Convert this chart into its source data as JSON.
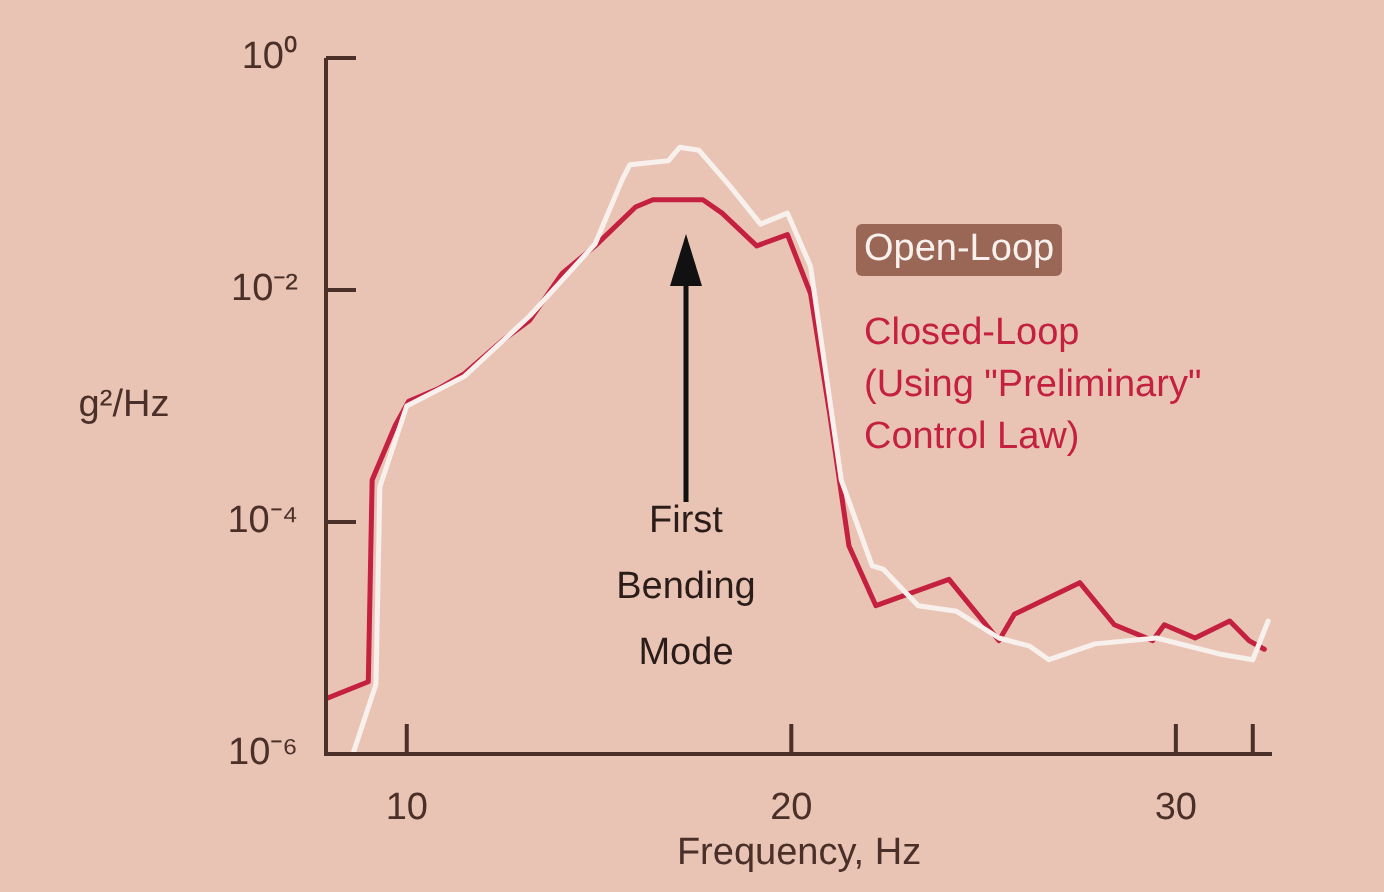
{
  "chart_data": {
    "type": "line",
    "xlabel": "Frequency, Hz",
    "ylabel": "g²/Hz",
    "log": "y",
    "grid": false,
    "legend": "right",
    "marker": "none",
    "line_style": "solid",
    "xlim": [
      7.9,
      32.5
    ],
    "xticks": [
      10,
      20,
      30,
      {
        "value": 32,
        "label": null
      }
    ],
    "ylim": [
      1e-06,
      1
    ],
    "yticks": [
      {
        "value": 1,
        "label": "10⁰"
      },
      {
        "value": 0.01,
        "label": "10⁻²"
      },
      {
        "value": 0.0001,
        "label": "10⁻⁴"
      },
      {
        "value": 1e-06,
        "label": "10⁻⁶"
      }
    ],
    "annotations": [
      "First Bending Mode"
    ],
    "series": [
      {
        "name": "Open-Loop",
        "color": "#f8f0ec",
        "x": [
          8.6,
          9.2,
          9.3,
          10.0,
          11.5,
          13.2,
          14.9,
          15.6,
          15.8,
          16.8,
          17.1,
          17.6,
          18.4,
          19.2,
          19.9,
          20.5,
          21.3,
          22.1,
          22.4,
          23.3,
          24.3,
          25.4,
          26.2,
          26.7,
          27.9,
          29.5,
          31.2,
          32.0,
          32.4
        ],
        "values": [
          1e-06,
          4e-06,
          0.0002,
          0.001,
          0.0018,
          0.006,
          0.025,
          0.089,
          0.12,
          0.13,
          0.17,
          0.16,
          0.079,
          0.037,
          0.046,
          0.016,
          0.00023,
          4.2e-05,
          3.9e-05,
          1.9e-05,
          1.7e-05,
          1e-05,
          8.5e-06,
          6.5e-06,
          8.9e-06,
          1e-05,
          7.2e-06,
          6.5e-06,
          1.4e-05
        ]
      },
      {
        "name": "Closed-Loop (Using \"Preliminary\" Control Law)",
        "color": "#c42040",
        "x": [
          7.9,
          9.0,
          9.1,
          9.7,
          10.05,
          10.8,
          11.5,
          12.5,
          13.2,
          14.05,
          14.9,
          15.95,
          16.4,
          17.7,
          18.2,
          19.1,
          19.9,
          20.5,
          21.0,
          21.5,
          22.2,
          24.1,
          25.4,
          25.8,
          27.5,
          28.4,
          29.4,
          29.7,
          30.5,
          31.4,
          31.9,
          32.3
        ],
        "values": [
          3e-06,
          4.2e-06,
          0.00023,
          0.00068,
          0.0011,
          0.0014,
          0.0019,
          0.0037,
          0.0055,
          0.014,
          0.024,
          0.052,
          0.06,
          0.06,
          0.046,
          0.024,
          0.03,
          0.0093,
          0.00085,
          6.2e-05,
          1.9e-05,
          3.2e-05,
          9.5e-06,
          1.6e-05,
          3e-05,
          1.3e-05,
          9.5e-06,
          1.3e-05,
          1e-05,
          1.4e-05,
          9.5e-06,
          8e-06
        ]
      }
    ]
  }
}
